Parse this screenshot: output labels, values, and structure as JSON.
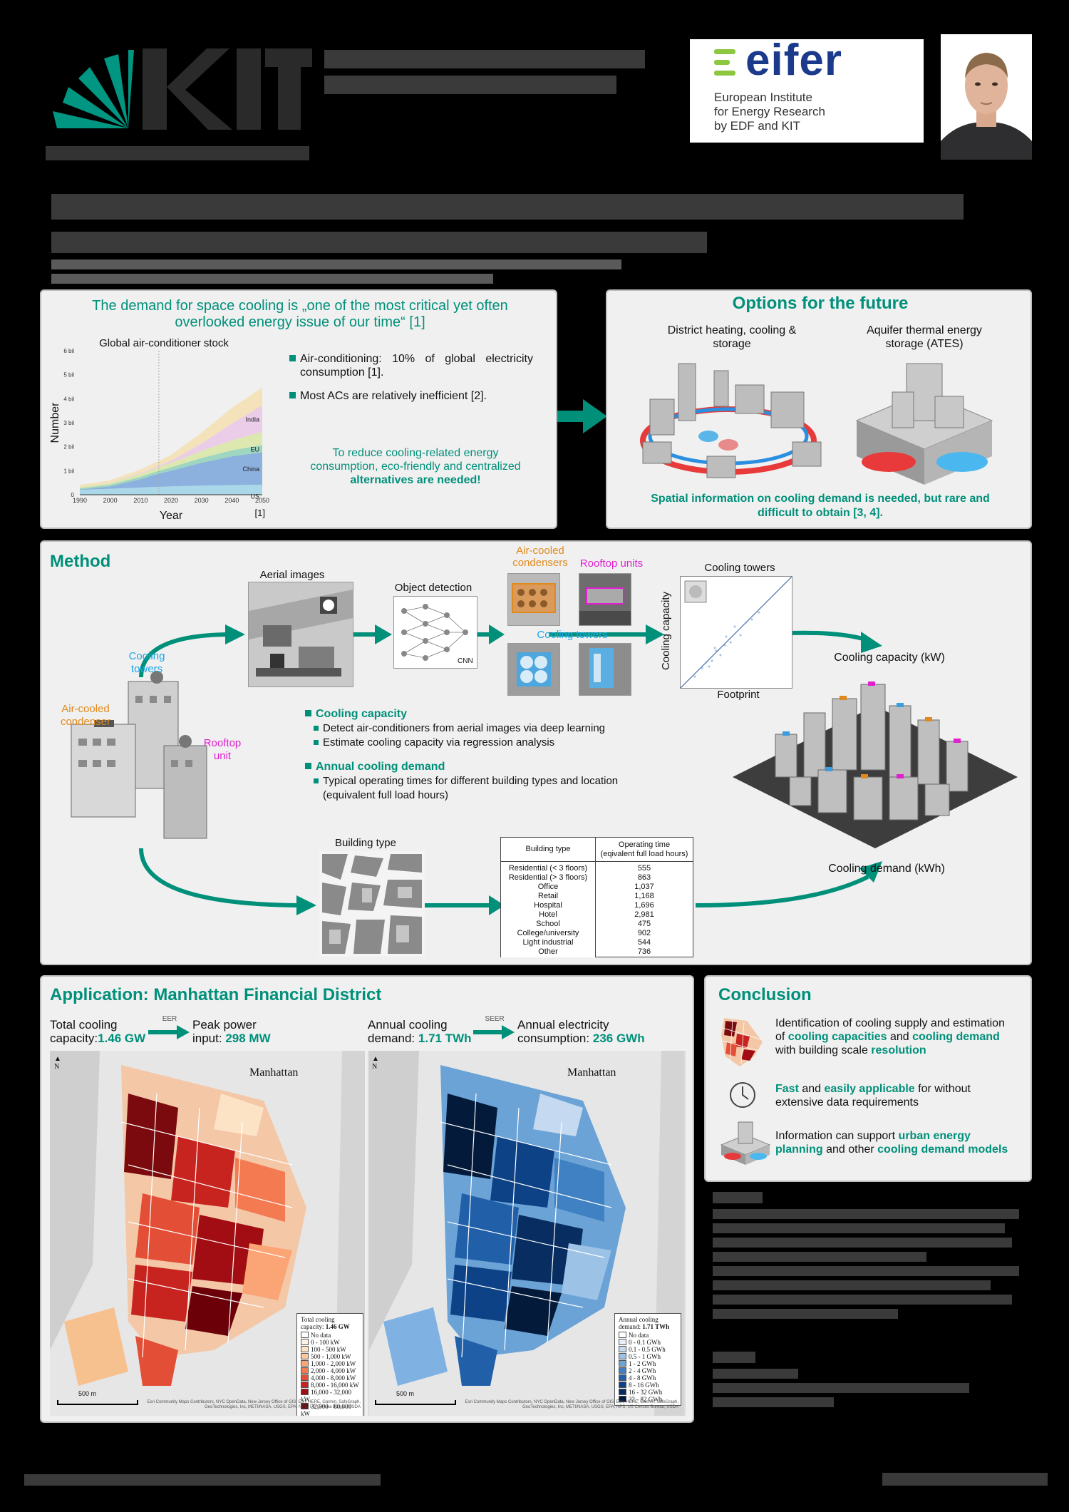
{
  "header": {
    "eifer_logo_text": "eifer",
    "eifer_tagline_lines": [
      "European Institute",
      "for Energy Research",
      "by EDF and KIT"
    ]
  },
  "intro": {
    "heading_line1": "The demand for space cooling is „one of the most critical yet often",
    "heading_line2": "overlooked energy issue of our time“ [1]",
    "bullets": [
      "Air-conditioning: 10% of global electricity consumption [1].",
      "Most ACs are relatively inefficient [2]."
    ],
    "call_line1": "To reduce cooling-related energy",
    "call_line2": "consumption, eco-friendly and centralized",
    "call_bold": "alternatives are needed!"
  },
  "chart_data": {
    "type": "area",
    "title": "Global air-conditioner stock",
    "xlabel": "Year",
    "ylabel": "Number",
    "x": [
      1990,
      2000,
      2010,
      2016,
      2020,
      2030,
      2040,
      2050
    ],
    "xticks": [
      "1990",
      "2000",
      "2010",
      "2020",
      "2030",
      "2040",
      "2050"
    ],
    "yticks": [
      "0",
      "1 bil",
      "2 bil",
      "3 bil",
      "4 bil",
      "5 bil",
      "6 bil"
    ],
    "xlim": [
      1990,
      2050
    ],
    "ylim": [
      0,
      6
    ],
    "stacked": true,
    "series": [
      {
        "name": "US",
        "values": [
          0.2,
          0.25,
          0.3,
          0.33,
          0.35,
          0.38,
          0.4,
          0.42
        ],
        "color": "#9fd4e8"
      },
      {
        "name": "China",
        "values": [
          0.02,
          0.1,
          0.35,
          0.55,
          0.65,
          0.95,
          1.2,
          1.35
        ],
        "color": "#7aa6db"
      },
      {
        "name": "EU",
        "values": [
          0.05,
          0.07,
          0.1,
          0.12,
          0.14,
          0.2,
          0.25,
          0.3
        ],
        "color": "#8fd1b6"
      },
      {
        "name": "",
        "values": [
          0.05,
          0.07,
          0.12,
          0.16,
          0.19,
          0.3,
          0.42,
          0.55
        ],
        "color": "#d8e6a4"
      },
      {
        "name": "India",
        "values": [
          0.0,
          0.01,
          0.03,
          0.05,
          0.08,
          0.3,
          0.7,
          1.1
        ],
        "color": "#eac6e8"
      },
      {
        "name": "",
        "values": [
          0.08,
          0.1,
          0.15,
          0.2,
          0.25,
          0.45,
          0.65,
          0.75
        ],
        "color": "#f3dfb0"
      }
    ],
    "reference": "[1]",
    "grid": false
  },
  "options": {
    "title": "Options for the future",
    "option1_line1": "District heating, cooling &",
    "option1_line2": "storage",
    "option2_line1": "Aquifer thermal energy",
    "option2_line2": "storage (ATES)",
    "note_line1": "Spatial information on cooling demand is needed, but rare and",
    "note_line2": "difficult to obtain [3, 4]."
  },
  "method": {
    "title": "Method",
    "aerial_images": "Aerial images",
    "object_detection": "Object detection",
    "cnn": "CNN",
    "air_cooled_condensers_l1": "Air-cooled",
    "air_cooled_condensers_l2": "condensers",
    "rooftop_units": "Rooftop units",
    "cooling_towers_label": "Cooling towers",
    "cooling_towers_chart_title": "Cooling towers",
    "cooling_capacity_axis": "Cooling capacity",
    "footprint_axis": "Footprint",
    "cooling_capacity_kw": "Cooling capacity (kW)",
    "cooling_demand_kwh": "Cooling demand (kWh)",
    "bldg_cooling_towers_l1": "Cooling",
    "bldg_cooling_towers_l2": "towers",
    "bldg_acc_l1": "Air-cooled",
    "bldg_acc_l2": "condenser",
    "bldg_rooftop_l1": "Rooftop",
    "bldg_rooftop_l2": "unit",
    "cap_heading": "Cooling capacity",
    "cap_items": [
      "Detect air-conditioners from aerial images via deep learning",
      "Estimate cooling capacity via regression analysis"
    ],
    "dem_heading": "Annual cooling demand",
    "dem_item_l1": "Typical operating times for different building types and location",
    "dem_item_l2": "(equivalent full load hours)",
    "building_type_label": "Building type",
    "table_header_type": "Building type",
    "table_header_time_l1": "Operating time",
    "table_header_time_l2": "(eqivalent full load hours)",
    "table_types": [
      "Residential (< 3 floors)",
      "Residential (> 3 floors)",
      "Office",
      "Retail",
      "Hospital",
      "Hotel",
      "School",
      "College/university",
      "Light industrial",
      "Other"
    ],
    "table_hours": [
      "555",
      "863",
      "1,037",
      "1,168",
      "1,696",
      "2,981",
      "475",
      "902",
      "544",
      "736"
    ]
  },
  "application": {
    "title": "Application: Manhattan Financial District",
    "total_cap_l1": "Total cooling",
    "total_cap_l2": "capacity:",
    "total_cap_val": "1.46 GW",
    "eer": "EER",
    "peak_l1": "Peak power",
    "peak_l2": "input:",
    "peak_val": "298 MW",
    "annual_dem_l1": "Annual cooling",
    "annual_dem_l2": "demand:",
    "annual_dem_val": "1.71 TWh",
    "seer": "SEER",
    "elec_l1": "Annual electricity",
    "elec_l2": "consumption:",
    "elec_val": "236 GWh",
    "map_place": "Manhattan",
    "north": "N",
    "scale": "500 m",
    "credits_l1": "Esri Community Maps Contributors, NYC OpenData, New Jersey Office of GIS, Esri, HERE, Garmin, SafeGraph,",
    "credits_l2": "GeoTechnologies, Inc, METI/NASA, USGS, EPA, NPS, US Census Bureau, USDA",
    "legend1_title_l1": "Total cooling",
    "legend1_title_l2": "capacity:",
    "legend1_title_val": "1.46 GW",
    "legend1": [
      {
        "label": "No data",
        "color": "#ffffff"
      },
      {
        "label": "0 - 100 kW",
        "color": "#fdf3e6"
      },
      {
        "label": "100 - 500 kW",
        "color": "#fde3c6"
      },
      {
        "label": "500 - 1,000 kW",
        "color": "#fcc89d"
      },
      {
        "label": "1,000 - 2,000 kW",
        "color": "#fba475"
      },
      {
        "label": "2,000 - 4,000 kW",
        "color": "#f47a52"
      },
      {
        "label": "4,000 - 8,000 kW",
        "color": "#e34f36"
      },
      {
        "label": "8,000 - 16,000 kW",
        "color": "#c8241f"
      },
      {
        "label": "16,000 - 32,000 kW",
        "color": "#a10d12"
      },
      {
        "label": "32,000 - 80,000 kW",
        "color": "#6b0008"
      }
    ],
    "legend2_title_l1": "Annual cooling",
    "legend2_title_l2": "demand:",
    "legend2_title_val": "1.71 TWh",
    "legend2": [
      {
        "label": "No data",
        "color": "#ffffff"
      },
      {
        "label": "0 - 0.1 GWh",
        "color": "#e7f0fa"
      },
      {
        "label": "0.1 - 0.5 GWh",
        "color": "#c5daf0"
      },
      {
        "label": "0.5 - 1 GWh",
        "color": "#9cc2e6"
      },
      {
        "label": "1 - 2 GWh",
        "color": "#6ba3d6"
      },
      {
        "label": "2 - 4 GWh",
        "color": "#3f81c2"
      },
      {
        "label": "4 - 8 GWh",
        "color": "#2160a8"
      },
      {
        "label": "8 - 16 GWh",
        "color": "#0e4287"
      },
      {
        "label": "16 - 32 GWh",
        "color": "#082d61"
      },
      {
        "label": "32 - 82 GWh",
        "color": "#041a3a"
      }
    ]
  },
  "conclusion": {
    "title": "Conclusion",
    "item1_l1": "Identification of cooling supply and estimation",
    "item1_l2a": "of ",
    "item1_l2b": "cooling capacities",
    "item1_l2c": " and ",
    "item1_l2d": "cooling demand",
    "item1_l3a": "with building scale ",
    "item1_l3b": "resolution",
    "item2_a": "Fast",
    "item2_b": " and ",
    "item2_c": "easily applicable",
    "item2_d": " for without",
    "item2_l2": "extensive data requirements",
    "item3_l1a": "Information can support ",
    "item3_l1b": "urban energy",
    "item3_l2a": "planning",
    "item3_l2b": " and other ",
    "item3_l2c": "cooling demand models"
  },
  "colors": {
    "teal": "#00907a",
    "orange": "#e08a1e",
    "magenta": "#e020d0",
    "cyan": "#1aa6e8"
  }
}
